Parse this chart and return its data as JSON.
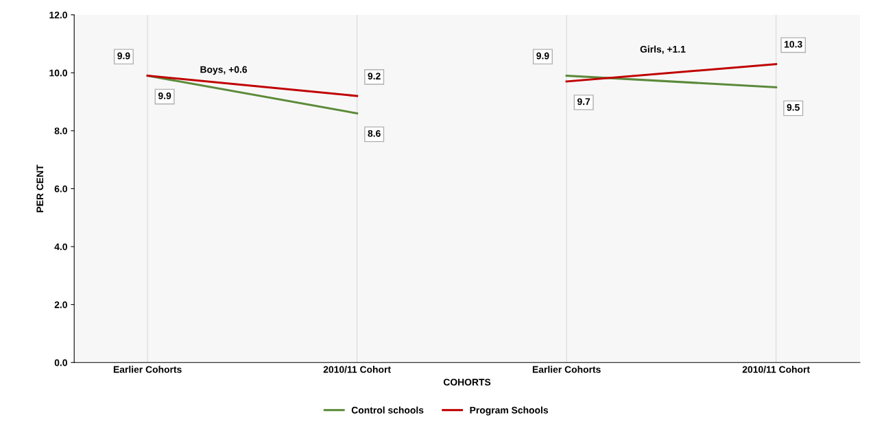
{
  "chart_data": {
    "type": "line",
    "xlabel": "COHORTS",
    "ylabel": "PER CENT",
    "categories": [
      "Earlier Cohorts",
      "2010/11 Cohort",
      "Earlier Cohorts",
      "2010/11 Cohort"
    ],
    "series": [
      {
        "name": "Control schools",
        "color": "#5b8a3a",
        "values": [
          9.9,
          8.6,
          null,
          null
        ]
      },
      {
        "name": "Program Schools",
        "color": "#c00000",
        "values": [
          9.9,
          9.2,
          null,
          null
        ]
      },
      {
        "color": "#5b8a3a",
        "values": [
          null,
          null,
          9.9,
          9.5
        ]
      },
      {
        "color": "#c00000",
        "values": [
          null,
          null,
          9.7,
          10.3
        ]
      }
    ],
    "ylim": [
      0,
      12
    ],
    "yticks": [
      {
        "value": 0,
        "label": "0.0"
      },
      {
        "value": 2,
        "label": "2.0"
      },
      {
        "value": 4,
        "label": "4.0"
      },
      {
        "value": 6,
        "label": "6.0"
      },
      {
        "value": 8,
        "label": "8.0"
      },
      {
        "value": 10,
        "label": "10.0"
      },
      {
        "value": 12,
        "label": "12.0"
      }
    ],
    "annotations": [
      "Boys, +0.6",
      "Girls, +1.1"
    ],
    "data_labels": true,
    "grid": "x",
    "legend": "bottom",
    "marker": "none",
    "line_style": "solid"
  }
}
